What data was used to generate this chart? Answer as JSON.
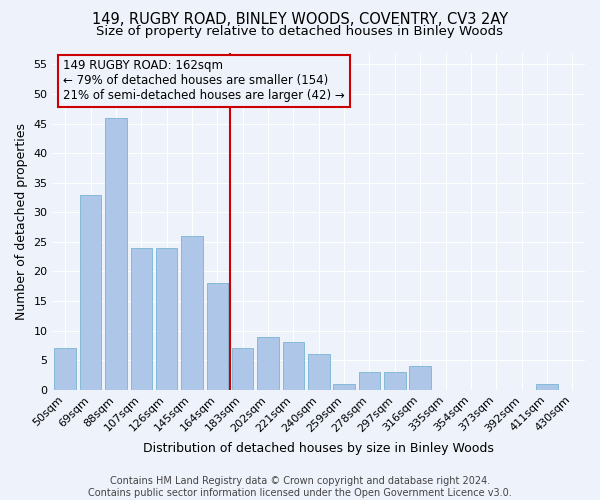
{
  "title1": "149, RUGBY ROAD, BINLEY WOODS, COVENTRY, CV3 2AY",
  "title2": "Size of property relative to detached houses in Binley Woods",
  "xlabel": "Distribution of detached houses by size in Binley Woods",
  "ylabel": "Number of detached properties",
  "categories": [
    "50sqm",
    "69sqm",
    "88sqm",
    "107sqm",
    "126sqm",
    "145sqm",
    "164sqm",
    "183sqm",
    "202sqm",
    "221sqm",
    "240sqm",
    "259sqm",
    "278sqm",
    "297sqm",
    "316sqm",
    "335sqm",
    "354sqm",
    "373sqm",
    "392sqm",
    "411sqm",
    "430sqm"
  ],
  "values": [
    7,
    33,
    46,
    24,
    24,
    26,
    18,
    7,
    9,
    8,
    6,
    1,
    3,
    3,
    4,
    0,
    0,
    0,
    0,
    1,
    0
  ],
  "bar_color": "#aec6e8",
  "bar_edge_color": "#7ab4d4",
  "vline_x_index": 6,
  "vline_color": "#cc0000",
  "annotation_lines": [
    "149 RUGBY ROAD: 162sqm",
    "← 79% of detached houses are smaller (154)",
    "21% of semi-detached houses are larger (42) →"
  ],
  "annotation_box_color": "#cc0000",
  "ylim": [
    0,
    57
  ],
  "yticks": [
    0,
    5,
    10,
    15,
    20,
    25,
    30,
    35,
    40,
    45,
    50,
    55
  ],
  "background_color": "#eef2fb",
  "grid_color": "#ffffff",
  "footer1": "Contains HM Land Registry data © Crown copyright and database right 2024.",
  "footer2": "Contains public sector information licensed under the Open Government Licence v3.0.",
  "title1_fontsize": 10.5,
  "title2_fontsize": 9.5,
  "xlabel_fontsize": 9,
  "ylabel_fontsize": 9,
  "tick_fontsize": 8,
  "footer_fontsize": 7,
  "annotation_fontsize": 8.5
}
